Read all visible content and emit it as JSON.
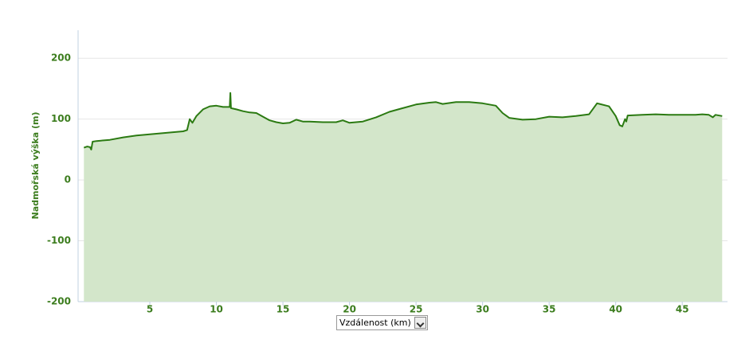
{
  "chart_data": {
    "type": "area",
    "y_label": "Nadmořská výška (m)",
    "x_selector": "Vzdálenost (km)",
    "color": "#2b7a12",
    "fill": "#d3e6ca",
    "grid": true,
    "xlim": [
      0,
      48.4
    ],
    "ylim": [
      -200,
      250
    ],
    "xticks": [
      5,
      10,
      15,
      20,
      25,
      30,
      35,
      40,
      45
    ],
    "yticks": [
      -200,
      -100,
      0,
      100,
      200
    ],
    "x": [
      0.05,
      0.3,
      0.5,
      0.6,
      0.7,
      1,
      2,
      3,
      4,
      5,
      6,
      7,
      7.5,
      7.8,
      8.0,
      8.2,
      8.5,
      9,
      9.5,
      10,
      10.5,
      11.0,
      11.05,
      11.1,
      11.5,
      12,
      12.5,
      13,
      13.5,
      14,
      14.5,
      15,
      15.5,
      16,
      16.5,
      17,
      18,
      19,
      19.5,
      20,
      21,
      22,
      23,
      24,
      25,
      26,
      26.5,
      27,
      28,
      29,
      30,
      31,
      31.5,
      32,
      33,
      34,
      35,
      36,
      37,
      38,
      38.6,
      38.8,
      39.5,
      40,
      40.3,
      40.5,
      40.7,
      40.8,
      40.9,
      42,
      43,
      44,
      45,
      46,
      46.5,
      47,
      47.3,
      47.5,
      48
    ],
    "values": [
      53,
      55,
      54,
      50,
      63,
      64,
      66,
      70,
      73,
      75,
      77,
      79,
      80,
      82,
      100,
      94,
      105,
      116,
      121,
      122,
      120,
      120,
      143,
      118,
      116,
      113,
      111,
      110,
      104,
      98,
      95,
      93,
      94,
      99,
      96,
      96,
      95,
      95,
      98,
      94,
      96,
      103,
      112,
      118,
      124,
      127,
      128,
      125,
      128,
      128,
      126,
      122,
      110,
      102,
      99,
      100,
      104,
      103,
      105,
      108,
      126,
      125,
      121,
      105,
      90,
      88,
      100,
      96,
      106,
      107,
      108,
      107,
      107,
      107,
      108,
      107,
      103,
      107,
      105
    ]
  }
}
